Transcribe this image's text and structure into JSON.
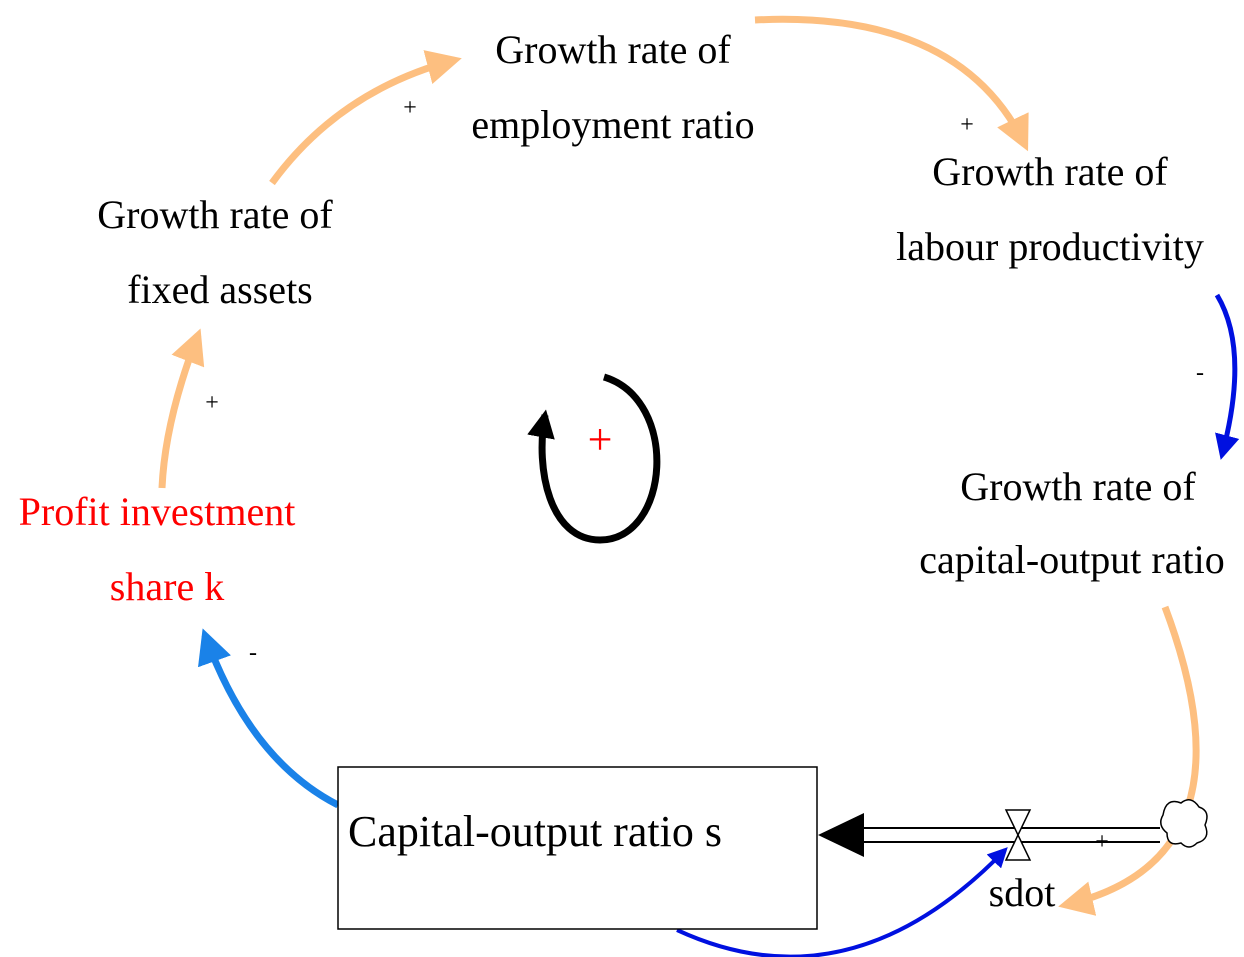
{
  "nodes": [
    {
      "lines": [
        "Growth rate of",
        "employment ratio"
      ]
    },
    {
      "lines": [
        "Growth rate of",
        "labour productivity"
      ]
    },
    {
      "lines": [
        "Growth rate of",
        "capital-output ratio"
      ]
    },
    {
      "lines": [
        "Growth rate of",
        "fixed assets"
      ]
    },
    {
      "lines": [
        "Profit investment",
        "share k"
      ]
    }
  ],
  "stock": {
    "label": "Capital-output ratio s"
  },
  "flow": {
    "label": "sdot"
  },
  "links": [
    {
      "polarity": "+"
    },
    {
      "polarity": "+"
    },
    {
      "polarity": "-"
    },
    {
      "polarity": "+"
    },
    {
      "polarity": "-"
    },
    {
      "polarity": "+"
    }
  ],
  "loop": {
    "polarity": "+"
  }
}
